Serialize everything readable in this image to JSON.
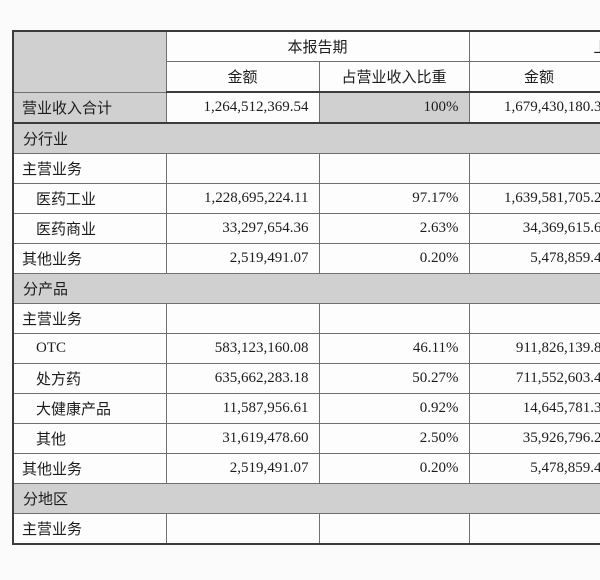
{
  "colors": {
    "shade_gray": "#d0d0d0",
    "border_dark": "#3c3c3c",
    "border_inner": "#6f6f6f",
    "cell_white": "#fdfdfd"
  },
  "table": {
    "header": {
      "period_current": "本报告期",
      "period_prior_partial": "上",
      "col_amount": "金额",
      "col_ratio": "占营业收入比重",
      "col_amount_prior": "金额"
    },
    "rows": [
      {
        "type": "data",
        "label": "营业收入合计",
        "amount": "1,264,512,369.54",
        "ratio": "100%",
        "prior": "1,679,430,180.3",
        "indent": false,
        "shade_label": true,
        "shade_ratio": true
      },
      {
        "type": "band",
        "label": "分行业"
      },
      {
        "type": "data",
        "label": "主营业务",
        "amount": "",
        "ratio": "",
        "prior": "",
        "indent": false
      },
      {
        "type": "data",
        "label": "医药工业",
        "amount": "1,228,695,224.11",
        "ratio": "97.17%",
        "prior": "1,639,581,705.2",
        "indent": true
      },
      {
        "type": "data",
        "label": "医药商业",
        "amount": "33,297,654.36",
        "ratio": "2.63%",
        "prior": "34,369,615.6",
        "indent": true
      },
      {
        "type": "data",
        "label": "其他业务",
        "amount": "2,519,491.07",
        "ratio": "0.20%",
        "prior": "5,478,859.4",
        "indent": false
      },
      {
        "type": "band",
        "label": "分产品"
      },
      {
        "type": "data",
        "label": "主营业务",
        "amount": "",
        "ratio": "",
        "prior": "",
        "indent": false
      },
      {
        "type": "data",
        "label": "OTC",
        "amount": "583,123,160.08",
        "ratio": "46.11%",
        "prior": "911,826,139.8",
        "indent": true
      },
      {
        "type": "data",
        "label": "处方药",
        "amount": "635,662,283.18",
        "ratio": "50.27%",
        "prior": "711,552,603.4",
        "indent": true
      },
      {
        "type": "data",
        "label": "大健康产品",
        "amount": "11,587,956.61",
        "ratio": "0.92%",
        "prior": "14,645,781.3",
        "indent": true
      },
      {
        "type": "data",
        "label": "其他",
        "amount": "31,619,478.60",
        "ratio": "2.50%",
        "prior": "35,926,796.2",
        "indent": true
      },
      {
        "type": "data",
        "label": "其他业务",
        "amount": "2,519,491.07",
        "ratio": "0.20%",
        "prior": "5,478,859.4",
        "indent": false
      },
      {
        "type": "band",
        "label": "分地区"
      },
      {
        "type": "data",
        "label": "主营业务",
        "amount": "",
        "ratio": "",
        "prior": "",
        "indent": false
      }
    ]
  }
}
